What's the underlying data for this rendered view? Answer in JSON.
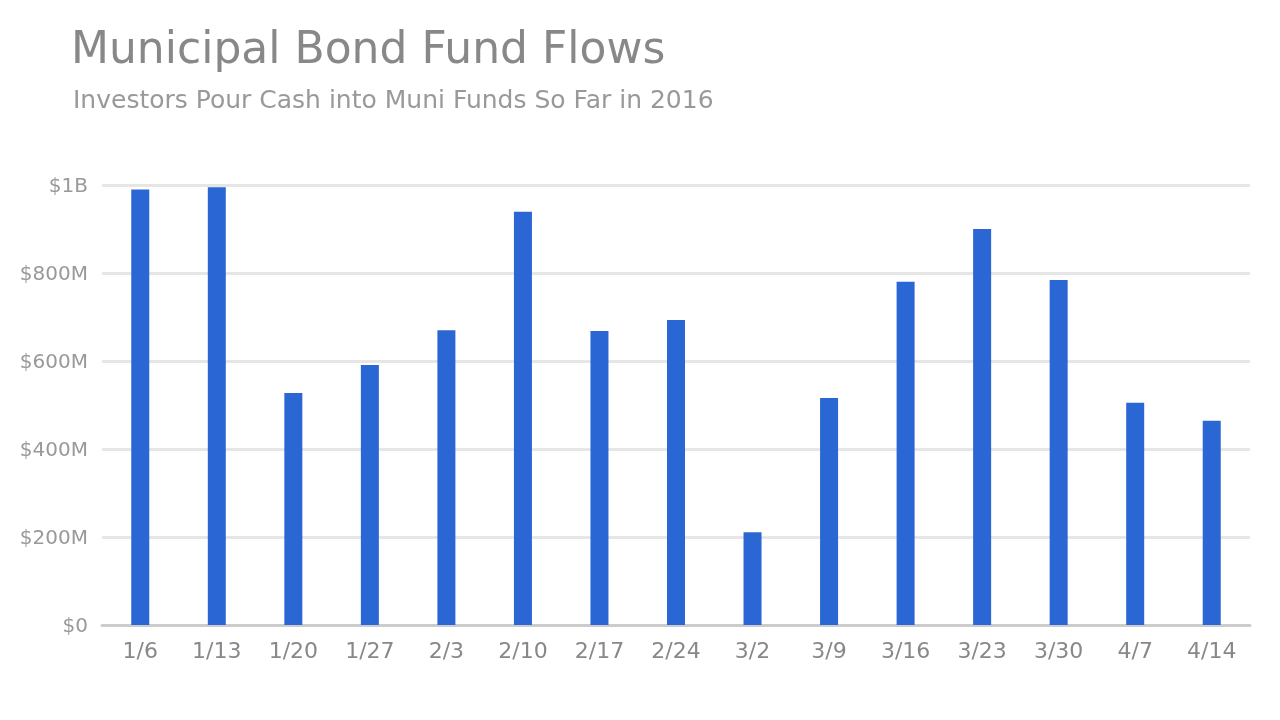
{
  "chart_data": {
    "type": "bar",
    "title": "Municipal Bond Fund Flows",
    "subtitle": "Investors Pour Cash into Muni Funds So Far in 2016",
    "categories": [
      "1/6",
      "1/13",
      "1/20",
      "1/27",
      "2/3",
      "2/10",
      "2/17",
      "2/24",
      "3/2",
      "3/9",
      "3/16",
      "3/23",
      "3/30",
      "4/7",
      "4/14"
    ],
    "values": [
      990000000,
      995000000,
      527000000,
      591000000,
      670000000,
      939000000,
      668000000,
      693000000,
      211000000,
      516000000,
      780000000,
      900000000,
      784000000,
      505000000,
      464000000
    ],
    "color": "#2a66d4",
    "ylim": [
      0,
      1000000000
    ],
    "yticks": [
      {
        "value": 0,
        "label": "$0"
      },
      {
        "value": 200000000,
        "label": "$200M"
      },
      {
        "value": 400000000,
        "label": "$400M"
      },
      {
        "value": 600000000,
        "label": "$600M"
      },
      {
        "value": 800000000,
        "label": "$800M"
      },
      {
        "value": 1000000000,
        "label": "$1B"
      }
    ],
    "grid": "y"
  }
}
